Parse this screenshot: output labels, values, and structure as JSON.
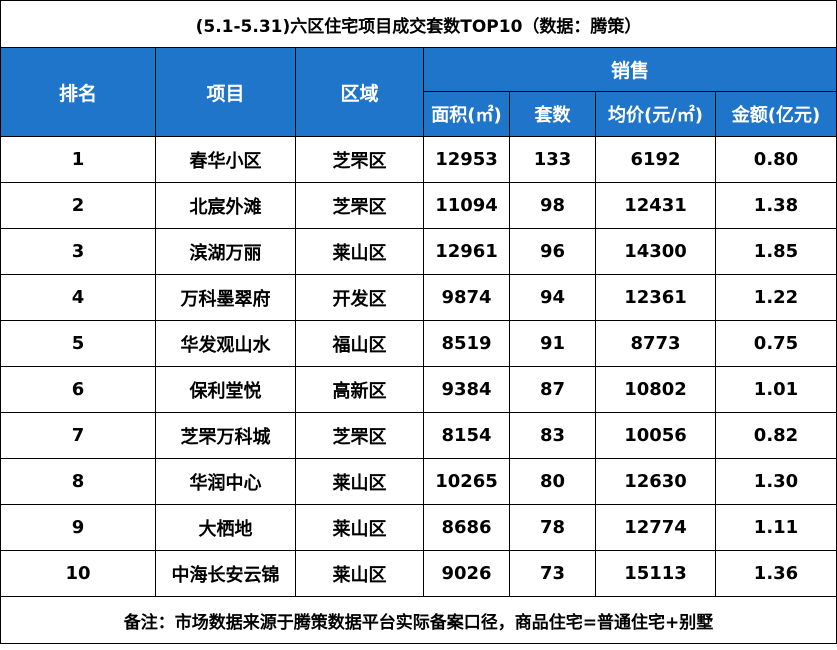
{
  "title": "(5.1-5.31)六区住宅项目成交套数TOP10（数据：腾策）",
  "headers": {
    "rank": "排名",
    "project": "项目",
    "district": "区域",
    "sales": "销售",
    "area": "面积(㎡)",
    "units": "套数",
    "avg_price": "均价(元/㎡)",
    "amount": "金额(亿元)"
  },
  "rows": [
    {
      "rank": "1",
      "project": "春华小区",
      "district": "芝罘区",
      "area": "12953",
      "units": "133",
      "avg_price": "6192",
      "amount": "0.80"
    },
    {
      "rank": "2",
      "project": "北宸外滩",
      "district": "芝罘区",
      "area": "11094",
      "units": "98",
      "avg_price": "12431",
      "amount": "1.38"
    },
    {
      "rank": "3",
      "project": "滨湖万丽",
      "district": "莱山区",
      "area": "12961",
      "units": "96",
      "avg_price": "14300",
      "amount": "1.85"
    },
    {
      "rank": "4",
      "project": "万科墨翠府",
      "district": "开发区",
      "area": "9874",
      "units": "94",
      "avg_price": "12361",
      "amount": "1.22"
    },
    {
      "rank": "5",
      "project": "华发观山水",
      "district": "福山区",
      "area": "8519",
      "units": "91",
      "avg_price": "8773",
      "amount": "0.75"
    },
    {
      "rank": "6",
      "project": "保利堂悦",
      "district": "高新区",
      "area": "9384",
      "units": "87",
      "avg_price": "10802",
      "amount": "1.01"
    },
    {
      "rank": "7",
      "project": "芝罘万科城",
      "district": "芝罘区",
      "area": "8154",
      "units": "83",
      "avg_price": "10056",
      "amount": "0.82"
    },
    {
      "rank": "8",
      "project": "华润中心",
      "district": "莱山区",
      "area": "10265",
      "units": "80",
      "avg_price": "12630",
      "amount": "1.30"
    },
    {
      "rank": "9",
      "project": "大栖地",
      "district": "莱山区",
      "area": "8686",
      "units": "78",
      "avg_price": "12774",
      "amount": "1.11"
    },
    {
      "rank": "10",
      "project": "中海长安云锦",
      "district": "莱山区",
      "area": "9026",
      "units": "73",
      "avg_price": "15113",
      "amount": "1.36"
    }
  ],
  "note": "备注：市场数据来源于腾策数据平台实际备案口径，商品住宅=普通住宅+别墅",
  "colors": {
    "header_bg": "#1f75c9",
    "header_text": "#ffffff",
    "border": "#000000"
  }
}
